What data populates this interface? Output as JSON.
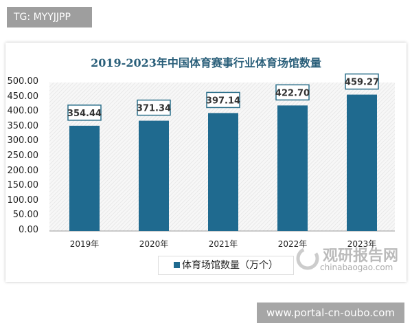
{
  "overlay": {
    "tg_label": "TG: MYYJJPP",
    "site_banner": "www.portal-cn-oubo.com"
  },
  "watermark": {
    "name": "观研报告网",
    "url": "chinabaogao.com"
  },
  "chart_data": {
    "type": "bar",
    "title": "2019-2023年中国体育赛事行业体育场馆数量",
    "categories": [
      "2019年",
      "2020年",
      "2021年",
      "2022年",
      "2023年"
    ],
    "series": [
      {
        "name": "体育场馆数量（万个）",
        "values": [
          354.44,
          371.34,
          397.14,
          422.7,
          459.27
        ]
      }
    ],
    "data_labels": [
      "354.44",
      "371.34",
      "397.14",
      "422.70",
      "459.27"
    ],
    "yticks": [
      "0.00",
      "50.00",
      "100.00",
      "150.00",
      "200.00",
      "250.00",
      "300.00",
      "350.00",
      "400.00",
      "450.00",
      "500.00"
    ],
    "ylim": [
      0,
      500
    ],
    "xlabel": "",
    "ylabel": "",
    "legend": "bottom",
    "grid": false,
    "colors": {
      "bar": "#1f6a8f",
      "label_border": "#2a6f8a"
    }
  }
}
